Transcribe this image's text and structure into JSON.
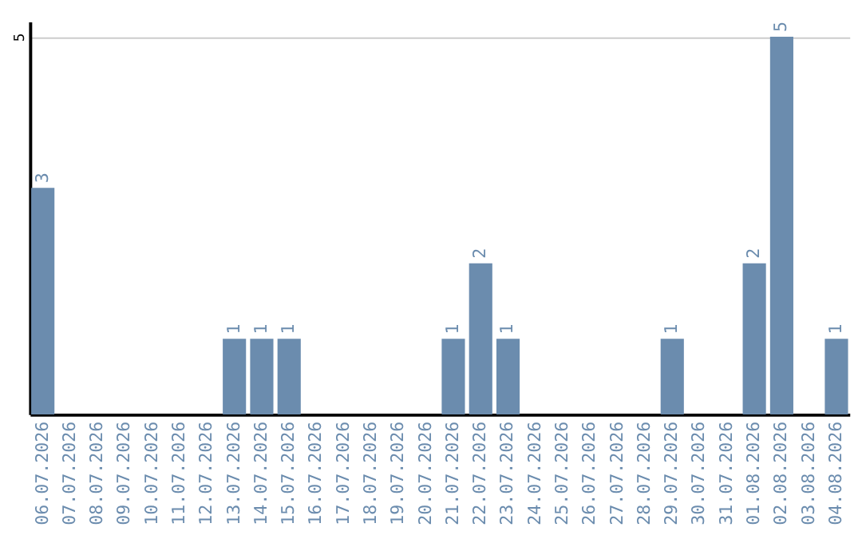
{
  "chart_data": {
    "type": "bar",
    "categories": [
      "06.07.2026",
      "07.07.2026",
      "08.07.2026",
      "09.07.2026",
      "10.07.2026",
      "11.07.2026",
      "12.07.2026",
      "13.07.2026",
      "14.07.2026",
      "15.07.2026",
      "16.07.2026",
      "17.07.2026",
      "18.07.2026",
      "19.07.2026",
      "20.07.2026",
      "21.07.2026",
      "22.07.2026",
      "23.07.2026",
      "24.07.2026",
      "25.07.2026",
      "26.07.2026",
      "27.07.2026",
      "28.07.2026",
      "29.07.2026",
      "30.07.2026",
      "31.07.2026",
      "01.08.2026",
      "02.08.2026",
      "03.08.2026",
      "04.08.2026"
    ],
    "values": [
      3,
      0,
      0,
      0,
      0,
      0,
      0,
      1,
      1,
      1,
      0,
      0,
      0,
      0,
      0,
      1,
      2,
      1,
      0,
      0,
      0,
      0,
      0,
      1,
      0,
      0,
      2,
      5,
      0,
      1
    ],
    "value_labels": [
      "3",
      null,
      null,
      null,
      null,
      null,
      null,
      "1",
      "1",
      "1",
      null,
      null,
      null,
      null,
      null,
      "1",
      "2",
      "1",
      null,
      null,
      null,
      null,
      null,
      "1",
      null,
      null,
      "2",
      "5",
      null,
      "1"
    ],
    "color": "#6b8cae",
    "ylim": [
      0,
      5.2
    ],
    "yticks": [
      5
    ],
    "grid": "y"
  }
}
